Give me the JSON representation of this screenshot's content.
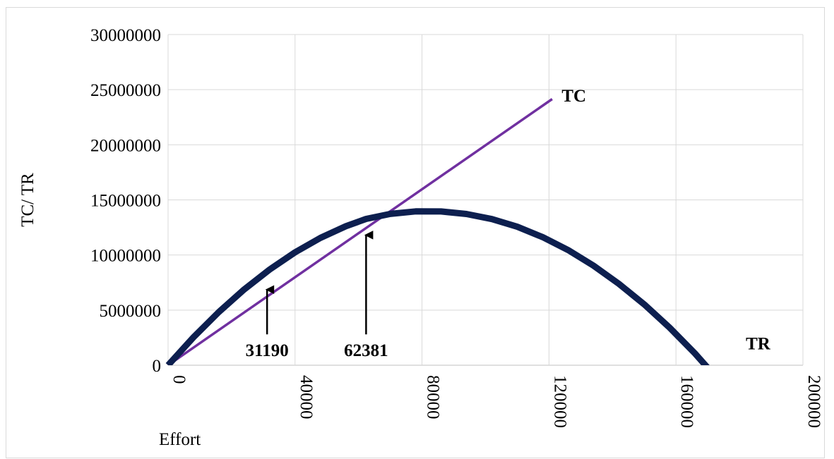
{
  "chart_data": {
    "type": "line",
    "title": "",
    "xlabel": "Effort",
    "ylabel": "TC/ TR",
    "xlim": [
      0,
      200000
    ],
    "ylim": [
      0,
      30000000
    ],
    "x_ticks": [
      0,
      40000,
      80000,
      120000,
      160000,
      200000
    ],
    "y_ticks": [
      0,
      5000000,
      10000000,
      15000000,
      20000000,
      25000000,
      30000000
    ],
    "x_tick_labels": [
      "0",
      "40000",
      "80000",
      "120000",
      "160000",
      "200000"
    ],
    "y_tick_labels": [
      "0",
      "5000000",
      "10000000",
      "15000000",
      "20000000",
      "25000000",
      "30000000"
    ],
    "grid": true,
    "series": [
      {
        "name": "TC",
        "color": "#7030a0",
        "x": [
          0,
          121000
        ],
        "y": [
          0,
          24150000
        ]
      },
      {
        "name": "TR",
        "color": "#0d1f4f",
        "x": [
          0,
          8000,
          16000,
          24000,
          32000,
          40000,
          48000,
          56000,
          62381,
          70000,
          78000,
          86000,
          94000,
          102000,
          110000,
          118000,
          126000,
          134000,
          142000,
          150000,
          158000,
          166000,
          174000,
          181000
        ],
        "y": [
          0,
          2540000,
          4830000,
          6880000,
          8680000,
          10240000,
          11550000,
          12610000,
          13270000,
          13730000,
          13960000,
          13950000,
          13720000,
          13260000,
          12560000,
          11620000,
          10450000,
          9040000,
          7390000,
          5520000,
          3410000,
          1060000,
          -1530000,
          -1780000
        ]
      }
    ],
    "series_labels": [
      {
        "text": "TC",
        "x": 124000,
        "y": 24500000
      },
      {
        "text": "TR",
        "x": 182000,
        "y": 2000000
      }
    ],
    "annotations": [
      {
        "text": "31190",
        "x": 31190,
        "y": 7500000,
        "arrow_from_y": 2800000
      },
      {
        "text": "62381",
        "x": 62381,
        "y": 12450000,
        "arrow_from_y": 2800000
      }
    ]
  }
}
